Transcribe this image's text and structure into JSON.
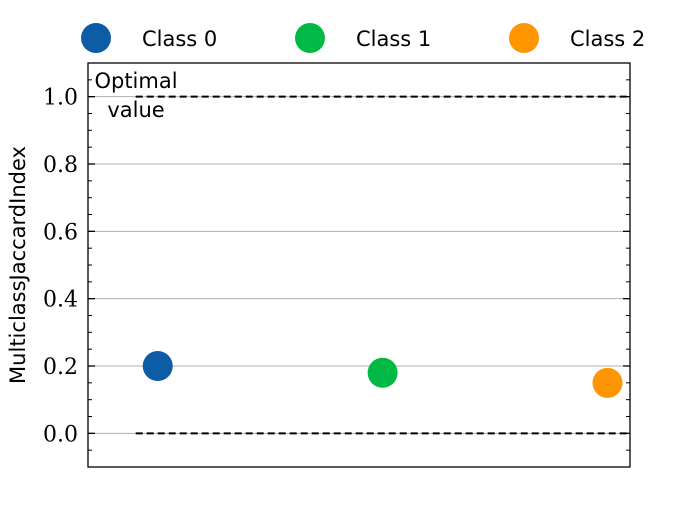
{
  "chart_data": {
    "type": "scatter",
    "ylabel": "MulticlassJaccardIndex",
    "xlabel": "",
    "ylim": [
      -0.1,
      1.1
    ],
    "yticks": [
      "0.0",
      "0.2",
      "0.4",
      "0.6",
      "0.8",
      "1.0"
    ],
    "grid": "horizontal",
    "legend_position": "top",
    "series": [
      {
        "name": "Class 0",
        "x": 0,
        "y": 0.2,
        "color": "#0C5DA5"
      },
      {
        "name": "Class 1",
        "x": 1,
        "y": 0.18,
        "color": "#00B945"
      },
      {
        "name": "Class 2",
        "x": 2,
        "y": 0.15,
        "color": "#FF9500"
      }
    ],
    "reference_lines": [
      {
        "y": 1.0,
        "style": "dashed"
      },
      {
        "y": 0.0,
        "style": "dashed"
      }
    ],
    "annotation": {
      "line1": "Optimal",
      "line2": "value"
    }
  }
}
